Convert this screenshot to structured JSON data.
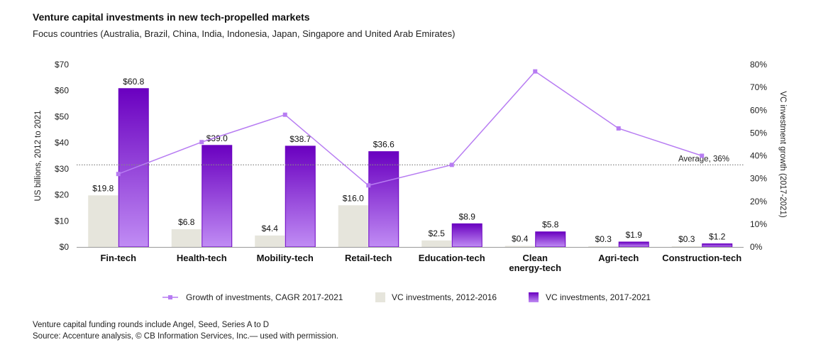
{
  "title": "Venture capital investments in new tech-propelled markets",
  "subtitle": "Focus countries (Australia, Brazil, China, India, Indonesia, Japan, Singapore and United Arab Emirates)",
  "footnotes": [
    "Venture capital funding rounds include Angel, Seed, Series A to D",
    "Source: Accenture analysis, © CB Information Services, Inc.— used with permission."
  ],
  "colors": {
    "bar_2012": "#e6e5dc",
    "bar_2017_top": "#6a00c0",
    "bar_2017_bottom": "#c08cf4",
    "line": "#b77cf2",
    "average": "#888888"
  },
  "chart_data": {
    "type": "bar",
    "categories": [
      "Fin-tech",
      "Health-tech",
      "Mobility-tech",
      "Retail-tech",
      "Education-tech",
      [
        "Clean",
        "energy-tech"
      ],
      "Agri-tech",
      "Construction-tech"
    ],
    "ylabel": "US billions, 2012 to 2021",
    "ylabel_right": "VC investment growth (2017-2021)",
    "ylim": [
      0,
      70
    ],
    "yticks": [
      "$0",
      "$10",
      "$20",
      "$30",
      "$40",
      "$50",
      "$60",
      "$70"
    ],
    "ylim_right": [
      0,
      80
    ],
    "yticks_right": [
      "0%",
      "10%",
      "20%",
      "30%",
      "40%",
      "50%",
      "60%",
      "70%",
      "80%"
    ],
    "series": [
      {
        "name": "VC investments, 2012-2016",
        "kind": "bar",
        "values": [
          19.8,
          6.8,
          4.4,
          16.0,
          2.5,
          0.4,
          0.3,
          0.3
        ],
        "labels": [
          "$19.8",
          "$6.8",
          "$4.4",
          "$16.0",
          "$2.5",
          "$0.4",
          "$0.3",
          "$0.3"
        ]
      },
      {
        "name": "VC investments, 2017-2021",
        "kind": "bar",
        "values": [
          60.8,
          39.0,
          38.7,
          36.6,
          8.9,
          5.8,
          1.9,
          1.2
        ],
        "labels": [
          "$60.8",
          "$39.0",
          "$38.7",
          "$36.6",
          "$8.9",
          "$5.8",
          "$1.9",
          "$1.2"
        ]
      },
      {
        "name": "Growth of investments, CAGR 2017-2021",
        "kind": "line",
        "axis": "right",
        "values": [
          32,
          46,
          58,
          27,
          36,
          77,
          52,
          40
        ]
      }
    ],
    "average": {
      "value": 36,
      "label": "Average, 36%"
    },
    "legend": {
      "position": "bottom"
    },
    "grid": false
  }
}
